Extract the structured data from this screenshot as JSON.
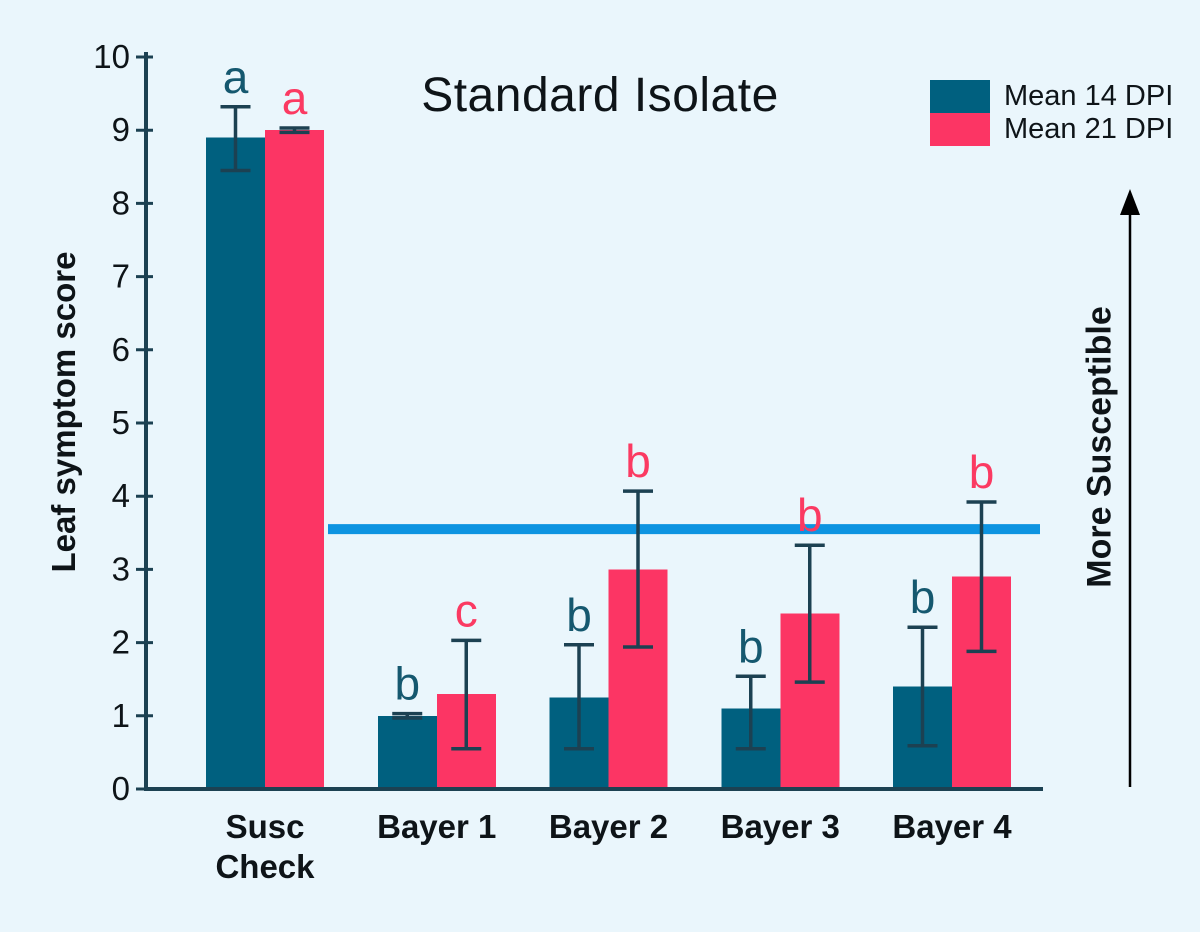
{
  "colors": {
    "background": "#eaf6fc",
    "axis": "#1c4152",
    "error_bar": "#1c4152",
    "text": "#0e1418",
    "series_14dpi": "#00607f",
    "series_21dpi": "#fc3564",
    "letter_teal": "#15586f",
    "letter_pink": "#fb3a62",
    "reference_line": "#0d94e1",
    "arrow": "#000000"
  },
  "chart_data": {
    "type": "bar",
    "title": "Standard Isolate",
    "ylabel": "Leaf symptom score",
    "xlabel": "",
    "ylim": [
      0,
      10
    ],
    "yticks": [
      0,
      1,
      2,
      3,
      4,
      5,
      6,
      7,
      8,
      9,
      10
    ],
    "grid": false,
    "legend_position": "top-right",
    "categories": [
      "Susc Check",
      "Bayer 1",
      "Bayer 2",
      "Bayer 3",
      "Bayer 4"
    ],
    "category_display_lines": [
      [
        "Susc",
        "Check"
      ],
      [
        "Bayer 1"
      ],
      [
        "Bayer 2"
      ],
      [
        "Bayer 3"
      ],
      [
        "Bayer 4"
      ]
    ],
    "series": [
      {
        "name": "Mean 14 DPI",
        "color": "#00607f",
        "letter_color": "#15586f",
        "values": [
          8.9,
          1.0,
          1.25,
          1.1,
          1.4
        ],
        "error_low": [
          8.45,
          0.97,
          0.55,
          0.55,
          0.59
        ],
        "error_high": [
          9.32,
          1.03,
          1.97,
          1.54,
          2.21
        ],
        "letters": [
          "a",
          "b",
          "b",
          "b",
          "b"
        ]
      },
      {
        "name": "Mean 21 DPI",
        "color": "#fc3564",
        "letter_color": "#fb3a62",
        "values": [
          9.0,
          1.3,
          3.0,
          2.4,
          2.9
        ],
        "error_low": [
          8.97,
          0.55,
          1.94,
          1.46,
          1.88
        ],
        "error_high": [
          9.03,
          2.03,
          4.07,
          3.33,
          3.92
        ],
        "letters": [
          "a",
          "c",
          "b",
          "b",
          "b"
        ]
      }
    ],
    "reference_line": {
      "value": 3.55,
      "color": "#0d94e1"
    },
    "annotation": {
      "text": "More Susceptible",
      "direction": "up"
    }
  }
}
